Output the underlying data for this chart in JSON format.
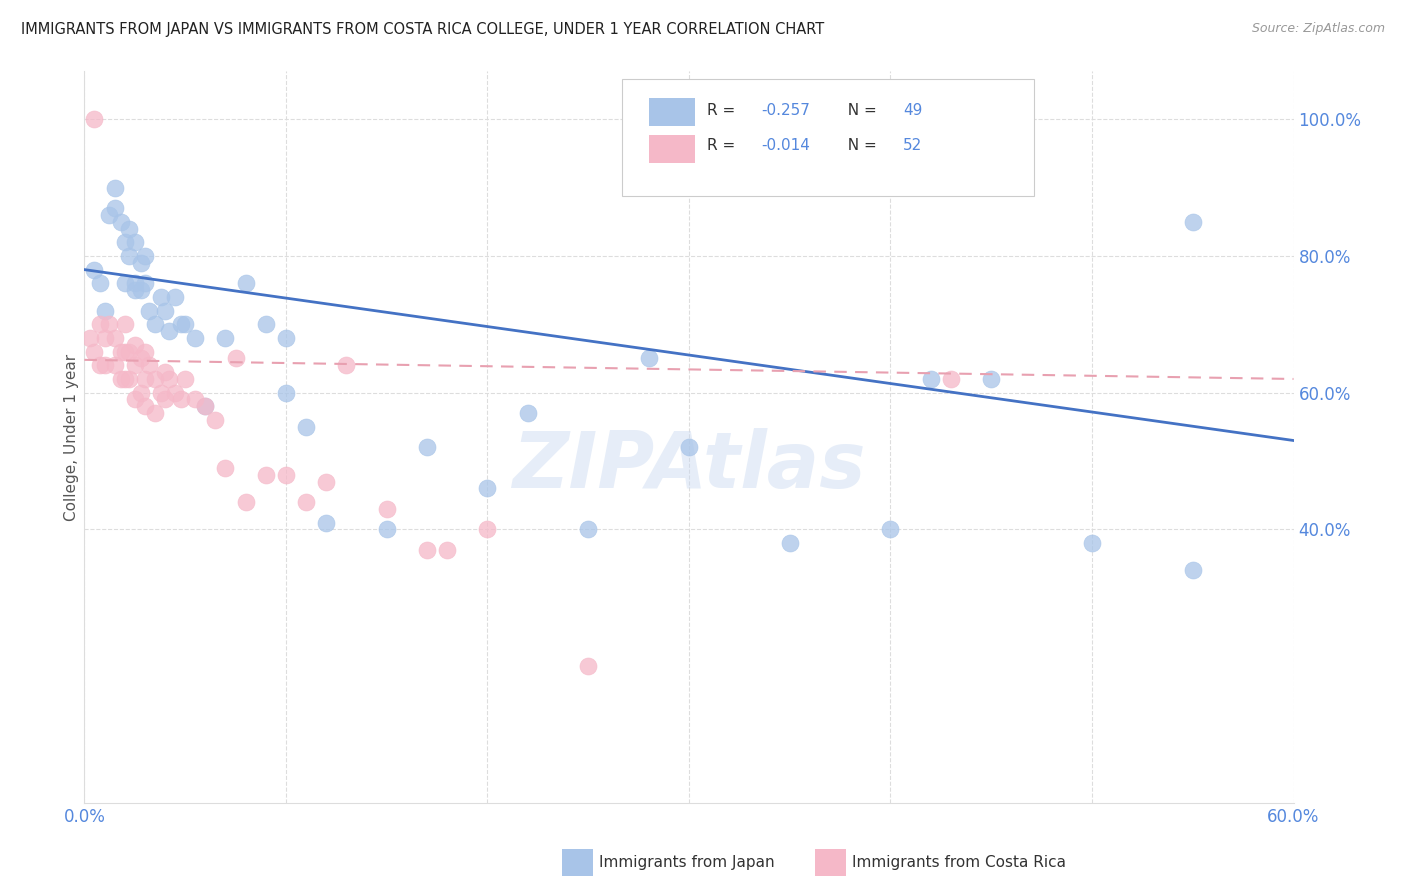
{
  "title": "IMMIGRANTS FROM JAPAN VS IMMIGRANTS FROM COSTA RICA COLLEGE, UNDER 1 YEAR CORRELATION CHART",
  "source": "Source: ZipAtlas.com",
  "ylabel": "College, Under 1 year",
  "x_min": 0.0,
  "x_max": 0.6,
  "y_min": 0.0,
  "y_max": 1.07,
  "right_yticks": [
    1.0,
    0.8,
    0.6,
    0.4
  ],
  "right_ytick_labels": [
    "100.0%",
    "80.0%",
    "60.0%",
    "40.0%"
  ],
  "bottom_xticks": [
    0.0,
    0.1,
    0.2,
    0.3,
    0.4,
    0.5,
    0.6
  ],
  "bottom_xtick_labels": [
    "0.0%",
    "",
    "",
    "",
    "",
    "",
    "60.0%"
  ],
  "legend_japan_r": "R = -0.257",
  "legend_japan_n": "N = 49",
  "legend_costarica_r": "R = -0.014",
  "legend_costarica_n": "N = 52",
  "japan_color": "#A8C4E8",
  "costarica_color": "#F5B8C8",
  "japan_line_color": "#4472C4",
  "costarica_line_color": "#E8A0B0",
  "watermark": "ZIPAtlas",
  "japan_scatter_x": [
    0.005,
    0.008,
    0.01,
    0.012,
    0.015,
    0.015,
    0.018,
    0.02,
    0.02,
    0.022,
    0.022,
    0.025,
    0.025,
    0.025,
    0.028,
    0.028,
    0.03,
    0.03,
    0.032,
    0.035,
    0.038,
    0.04,
    0.042,
    0.045,
    0.048,
    0.05,
    0.055,
    0.06,
    0.07,
    0.08,
    0.09,
    0.1,
    0.1,
    0.11,
    0.12,
    0.15,
    0.17,
    0.2,
    0.22,
    0.25,
    0.28,
    0.3,
    0.35,
    0.4,
    0.42,
    0.45,
    0.5,
    0.55,
    0.55
  ],
  "japan_scatter_y": [
    0.78,
    0.76,
    0.72,
    0.86,
    0.87,
    0.9,
    0.85,
    0.82,
    0.76,
    0.84,
    0.8,
    0.76,
    0.82,
    0.75,
    0.79,
    0.75,
    0.8,
    0.76,
    0.72,
    0.7,
    0.74,
    0.72,
    0.69,
    0.74,
    0.7,
    0.7,
    0.68,
    0.58,
    0.68,
    0.76,
    0.7,
    0.68,
    0.6,
    0.55,
    0.41,
    0.4,
    0.52,
    0.46,
    0.57,
    0.4,
    0.65,
    0.52,
    0.38,
    0.4,
    0.62,
    0.62,
    0.38,
    0.34,
    0.85
  ],
  "costarica_scatter_x": [
    0.003,
    0.005,
    0.008,
    0.008,
    0.01,
    0.01,
    0.012,
    0.015,
    0.015,
    0.018,
    0.018,
    0.02,
    0.02,
    0.02,
    0.022,
    0.022,
    0.025,
    0.025,
    0.025,
    0.028,
    0.028,
    0.03,
    0.03,
    0.03,
    0.032,
    0.035,
    0.035,
    0.038,
    0.04,
    0.04,
    0.042,
    0.045,
    0.048,
    0.05,
    0.055,
    0.06,
    0.065,
    0.07,
    0.075,
    0.08,
    0.09,
    0.1,
    0.11,
    0.12,
    0.13,
    0.15,
    0.17,
    0.18,
    0.2,
    0.25,
    0.43,
    0.005
  ],
  "costarica_scatter_y": [
    0.68,
    0.66,
    0.7,
    0.64,
    0.68,
    0.64,
    0.7,
    0.68,
    0.64,
    0.66,
    0.62,
    0.7,
    0.66,
    0.62,
    0.66,
    0.62,
    0.67,
    0.64,
    0.59,
    0.65,
    0.6,
    0.66,
    0.62,
    0.58,
    0.64,
    0.62,
    0.57,
    0.6,
    0.63,
    0.59,
    0.62,
    0.6,
    0.59,
    0.62,
    0.59,
    0.58,
    0.56,
    0.49,
    0.65,
    0.44,
    0.48,
    0.48,
    0.44,
    0.47,
    0.64,
    0.43,
    0.37,
    0.37,
    0.4,
    0.2,
    0.62,
    1.0
  ],
  "japan_trend_x": [
    0.0,
    0.6
  ],
  "japan_trend_y": [
    0.78,
    0.53
  ],
  "costarica_trend_x": [
    0.0,
    0.6
  ],
  "costarica_trend_y": [
    0.648,
    0.62
  ],
  "grid_color": "#DDDDDD",
  "tick_color": "#5588DD",
  "label_color": "#555555"
}
